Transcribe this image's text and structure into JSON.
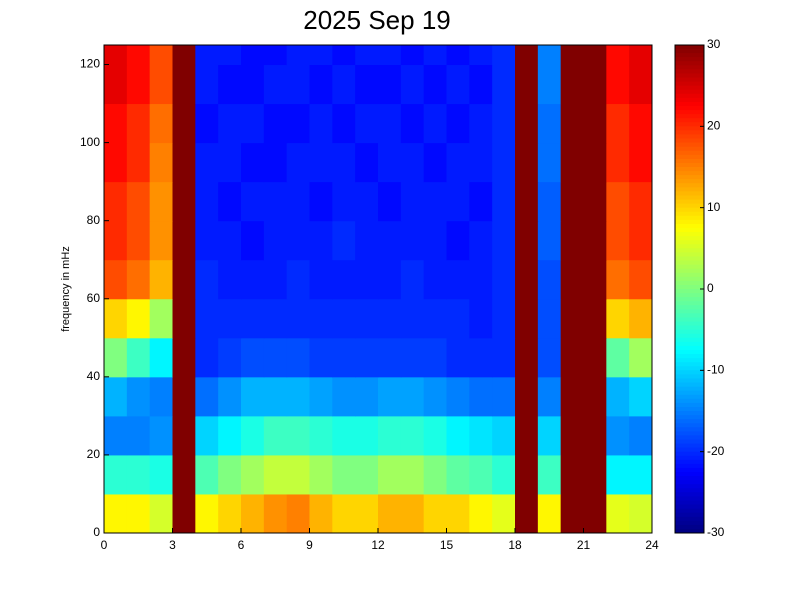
{
  "chart_data": {
    "type": "heatmap",
    "title": "2025 Sep 19",
    "y_label": "frequency in mHz",
    "colormap": "jet",
    "x_bins": [
      0,
      1,
      2,
      3,
      4,
      5,
      6,
      7,
      8,
      9,
      10,
      11,
      12,
      13,
      14,
      15,
      16,
      17,
      18,
      19,
      20,
      21,
      22,
      23,
      24
    ],
    "y_bins": [
      0,
      10,
      20,
      30,
      40,
      50,
      60,
      70,
      80,
      90,
      100,
      110,
      120,
      125
    ],
    "values": [
      [
        8,
        8,
        5,
        30,
        8,
        10,
        12,
        14,
        15,
        12,
        10,
        10,
        12,
        12,
        10,
        10,
        8,
        6,
        30,
        8,
        30,
        30,
        6,
        5
      ],
      [
        -5,
        -5,
        -6,
        30,
        -3,
        0,
        2,
        4,
        4,
        2,
        0,
        0,
        2,
        2,
        0,
        -2,
        -3,
        -5,
        30,
        -4,
        30,
        30,
        -8,
        -8
      ],
      [
        -15,
        -15,
        -14,
        30,
        -10,
        -8,
        -6,
        -4,
        -4,
        -5,
        -6,
        -6,
        -5,
        -5,
        -6,
        -8,
        -9,
        -10,
        30,
        -10,
        30,
        30,
        -14,
        -15
      ],
      [
        -12,
        -14,
        -15,
        30,
        -16,
        -14,
        -12,
        -12,
        -12,
        -13,
        -14,
        -14,
        -13,
        -13,
        -14,
        -15,
        -16,
        -16,
        30,
        -15,
        30,
        30,
        -12,
        -10
      ],
      [
        0,
        -4,
        -8,
        30,
        -20,
        -19,
        -18,
        -18,
        -18,
        -19,
        -19,
        -19,
        -19,
        -19,
        -19,
        -20,
        -20,
        -20,
        30,
        -18,
        30,
        30,
        -2,
        2
      ],
      [
        10,
        8,
        2,
        30,
        -20,
        -20,
        -20,
        -20,
        -20,
        -20,
        -20,
        -20,
        -20,
        -20,
        -20,
        -20,
        -21,
        -20,
        30,
        -18,
        30,
        30,
        10,
        12
      ],
      [
        18,
        16,
        12,
        30,
        -20,
        -21,
        -21,
        -21,
        -20,
        -21,
        -21,
        -21,
        -21,
        -20,
        -21,
        -21,
        -21,
        -20,
        30,
        -18,
        30,
        30,
        16,
        18
      ],
      [
        20,
        18,
        14,
        30,
        -21,
        -21,
        -22,
        -21,
        -21,
        -21,
        -20,
        -21,
        -21,
        -21,
        -21,
        -22,
        -21,
        -20,
        30,
        -17,
        30,
        30,
        18,
        20
      ],
      [
        20,
        18,
        14,
        30,
        -21,
        -22,
        -21,
        -21,
        -21,
        -22,
        -21,
        -21,
        -22,
        -21,
        -21,
        -21,
        -22,
        -20,
        30,
        -17,
        30,
        30,
        18,
        20
      ],
      [
        22,
        20,
        15,
        30,
        -21,
        -21,
        -22,
        -22,
        -21,
        -21,
        -21,
        -22,
        -21,
        -21,
        -22,
        -21,
        -21,
        -20,
        30,
        -16,
        30,
        30,
        20,
        22
      ],
      [
        22,
        20,
        16,
        30,
        -22,
        -21,
        -21,
        -22,
        -22,
        -21,
        -22,
        -21,
        -21,
        -22,
        -21,
        -22,
        -21,
        -20,
        30,
        -16,
        30,
        30,
        20,
        22
      ],
      [
        24,
        22,
        18,
        30,
        -21,
        -22,
        -22,
        -21,
        -21,
        -22,
        -21,
        -22,
        -22,
        -21,
        -22,
        -21,
        -22,
        -20,
        30,
        -15,
        30,
        30,
        22,
        24
      ],
      [
        24,
        22,
        18,
        30,
        -21,
        -21,
        -22,
        -22,
        -21,
        -21,
        -22,
        -21,
        -21,
        -22,
        -21,
        -22,
        -21,
        -20,
        30,
        -15,
        30,
        30,
        22,
        24
      ]
    ],
    "xlim": [
      0,
      24
    ],
    "ylim": [
      0,
      125
    ],
    "clim": [
      -30,
      30
    ],
    "xticks": [
      0,
      3,
      6,
      9,
      12,
      15,
      18,
      21,
      24
    ],
    "yticks": [
      0,
      20,
      40,
      60,
      80,
      100,
      120
    ],
    "cticks": [
      -30,
      -20,
      -10,
      0,
      10,
      20,
      30
    ]
  }
}
